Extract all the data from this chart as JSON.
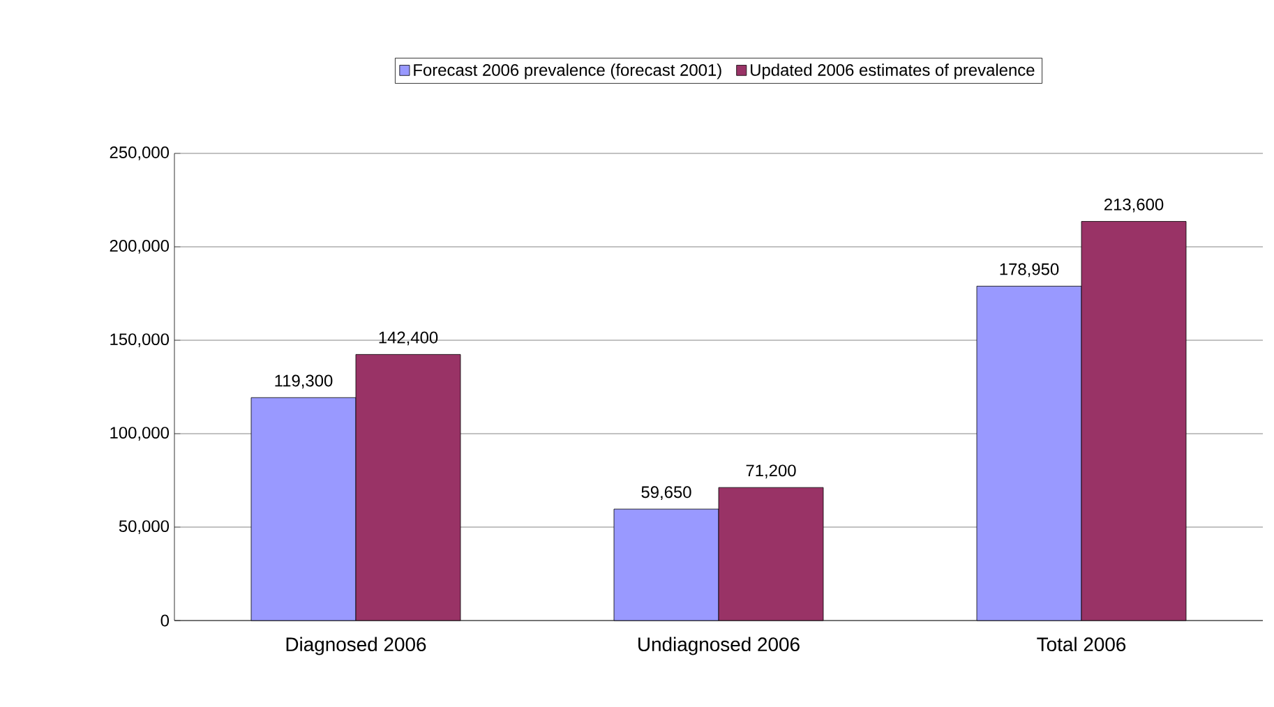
{
  "chart_data": {
    "type": "bar",
    "categories": [
      "Diagnosed 2006",
      "Undiagnosed 2006",
      "Total 2006"
    ],
    "series": [
      {
        "name": "Forecast 2006 prevalence (forecast 2001)",
        "color": "#9999ff",
        "values": [
          119300,
          59650,
          178950
        ],
        "value_labels": [
          "119,300",
          "59,650",
          "178,950"
        ]
      },
      {
        "name": "Updated 2006 estimates of prevalence",
        "color": "#993366",
        "values": [
          142400,
          71200,
          213600
        ],
        "value_labels": [
          "142,400",
          "71,200",
          "213,600"
        ]
      }
    ],
    "ylim": [
      0,
      250000
    ],
    "yticks": [
      0,
      {
        "value": 50000,
        "label": "50,000"
      },
      {
        "value": 100000,
        "label": "100,000"
      },
      {
        "value": 150000,
        "label": "150,000"
      },
      {
        "value": 200000,
        "label": "200,000"
      },
      {
        "value": 250000,
        "label": "250,000"
      }
    ],
    "grid": "y",
    "legend": "top"
  }
}
